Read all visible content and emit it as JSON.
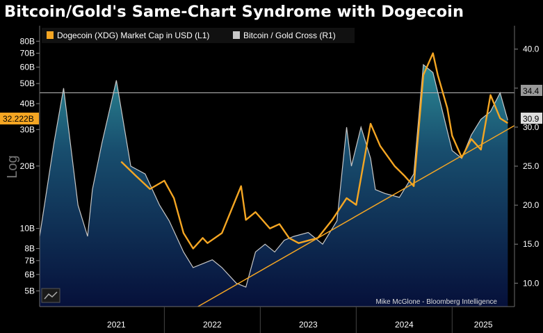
{
  "title": "Bitcoin/Gold's Same-Chart Syndrome with Dogecoin",
  "chart_data": {
    "type": "line",
    "y_scale_left": "log",
    "ylabel_left": "Log",
    "ylim_left": [
      4.2,
      95
    ],
    "ylim_right": [
      7,
      43
    ],
    "xlim": [
      2020.7,
      2025.65
    ],
    "x_ticks": [
      "2021",
      "2022",
      "2023",
      "2024",
      "2025"
    ],
    "y_ticks_left": [
      {
        "v": 80,
        "label": "80B"
      },
      {
        "v": 70,
        "label": "70B"
      },
      {
        "v": 60,
        "label": "60B"
      },
      {
        "v": 50,
        "label": "50B"
      },
      {
        "v": 40,
        "label": "40B"
      },
      {
        "v": 30,
        "label": "30B"
      },
      {
        "v": 20,
        "label": "20B"
      },
      {
        "v": 10,
        "label": "10B"
      },
      {
        "v": 8,
        "label": "8B"
      },
      {
        "v": 7,
        "label": "7B"
      },
      {
        "v": 6,
        "label": "6B"
      },
      {
        "v": 5,
        "label": "5B"
      }
    ],
    "y_ticks_right": [
      {
        "v": 40,
        "label": "40.0"
      },
      {
        "v": 35,
        "label": "35.0"
      },
      {
        "v": 30,
        "label": "30.0"
      },
      {
        "v": 25,
        "label": "25.0"
      },
      {
        "v": 20,
        "label": "20.0"
      },
      {
        "v": 15,
        "label": "15.0"
      },
      {
        "v": 10,
        "label": "10.0"
      }
    ],
    "series": [
      {
        "name": "Dogecoin (XDG) Market Cap in USD (L1)",
        "axis": "left",
        "color": "#f5a623",
        "last_value_label": "32.222B",
        "x": [
          2021.55,
          2021.7,
          2021.85,
          2022.0,
          2022.1,
          2022.2,
          2022.3,
          2022.4,
          2022.45,
          2022.6,
          2022.8,
          2022.85,
          2022.95,
          2023.1,
          2023.2,
          2023.3,
          2023.4,
          2023.6,
          2023.75,
          2023.9,
          2024.0,
          2024.15,
          2024.25,
          2024.4,
          2024.5,
          2024.6,
          2024.7,
          2024.8,
          2024.85,
          2024.95,
          2025.0,
          2025.1,
          2025.2,
          2025.3,
          2025.4,
          2025.5,
          2025.58
        ],
        "values": [
          21,
          18,
          15.5,
          17,
          14,
          9.5,
          8,
          9,
          8.5,
          9.5,
          16,
          11,
          12,
          10,
          10.5,
          9,
          8.5,
          9,
          11,
          14,
          13,
          32,
          25,
          20,
          18,
          16,
          55,
          70,
          55,
          38,
          28,
          22,
          27,
          24,
          44,
          34,
          32.2
        ]
      },
      {
        "name": "Bitcoin / Gold Cross (R1)",
        "axis": "right",
        "color": "#c8c8c8",
        "last_value_label": "30.9",
        "x": [
          2020.7,
          2020.85,
          2020.95,
          2021.0,
          2021.1,
          2021.2,
          2021.25,
          2021.35,
          2021.5,
          2021.65,
          2021.8,
          2021.95,
          2022.05,
          2022.2,
          2022.3,
          2022.4,
          2022.5,
          2022.6,
          2022.75,
          2022.85,
          2022.95,
          2023.05,
          2023.15,
          2023.25,
          2023.35,
          2023.5,
          2023.65,
          2023.8,
          2023.9,
          2023.95,
          2024.05,
          2024.15,
          2024.2,
          2024.3,
          2024.45,
          2024.6,
          2024.7,
          2024.8,
          2024.9,
          2025.0,
          2025.1,
          2025.2,
          2025.3,
          2025.4,
          2025.5,
          2025.58
        ],
        "values": [
          16,
          28,
          35,
          30,
          20,
          16,
          22,
          28,
          36,
          25,
          24,
          20,
          18,
          14,
          12,
          12.5,
          13,
          12,
          10,
          9.5,
          14,
          15,
          14,
          15.5,
          16,
          16.5,
          15,
          18,
          30,
          25,
          30,
          26,
          22,
          21.5,
          21,
          24,
          38,
          37,
          32,
          27,
          26,
          29,
          31,
          32,
          34.4,
          30.9
        ]
      }
    ],
    "annotations": [
      {
        "type": "horizontal_line",
        "axis": "right",
        "value": 34.4,
        "label": "34.4"
      },
      {
        "type": "trendline",
        "axis": "right",
        "from": [
          2022.35,
          7.0
        ],
        "to": [
          2025.65,
          30.2
        ]
      }
    ],
    "source": "Mike McGlone - Bloomberg Intelligence"
  }
}
